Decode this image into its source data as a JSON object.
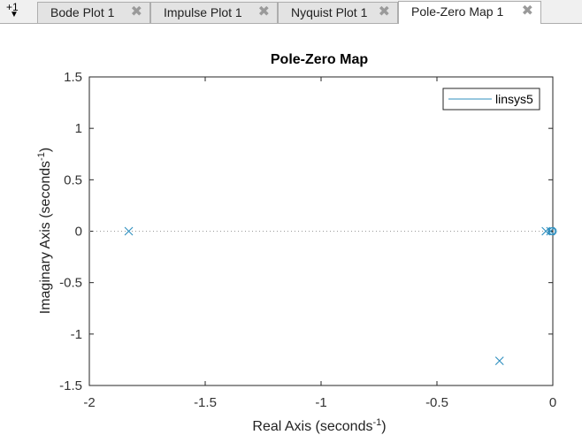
{
  "tabs": {
    "overflow_count": "+1",
    "items": [
      {
        "label": "Bode Plot 1",
        "active": false
      },
      {
        "label": "Impulse Plot 1",
        "active": false
      },
      {
        "label": "Nyquist Plot 1",
        "active": false
      },
      {
        "label": "Pole-Zero Map 1",
        "active": true
      }
    ],
    "close_glyph": "✖"
  },
  "chart_data": {
    "type": "scatter",
    "title": "Pole-Zero Map",
    "xlabel": "Real Axis (seconds",
    "xlabel_sup": "-1",
    "xlabel_close": ")",
    "ylabel": "Imaginary Axis (seconds",
    "ylabel_sup": "-1",
    "ylabel_close": ")",
    "xlim": [
      -2,
      0
    ],
    "ylim": [
      -1.5,
      1.5
    ],
    "xticks": [
      -2,
      -1.5,
      -1,
      -0.5,
      0
    ],
    "xtick_labels": [
      "-2",
      "-1.5",
      "-1",
      "-0.5",
      "0"
    ],
    "yticks": [
      1.5,
      1,
      0.5,
      0,
      -0.5,
      -1,
      -1.5
    ],
    "ytick_labels": [
      "1.5",
      "1",
      "0.5",
      "0",
      "-0.5",
      "-1",
      "-1.5"
    ],
    "series": [
      {
        "name": "linsys5",
        "color": "#2f8fbf",
        "poles": [
          [
            -1.83,
            0
          ],
          [
            -0.23,
            -1.26
          ],
          [
            -0.03,
            0
          ],
          [
            -0.01,
            0
          ]
        ],
        "zeros": [
          [
            -0.005,
            0
          ],
          [
            0.0,
            0
          ]
        ]
      }
    ],
    "legend_position": "top-right",
    "grid": false
  }
}
